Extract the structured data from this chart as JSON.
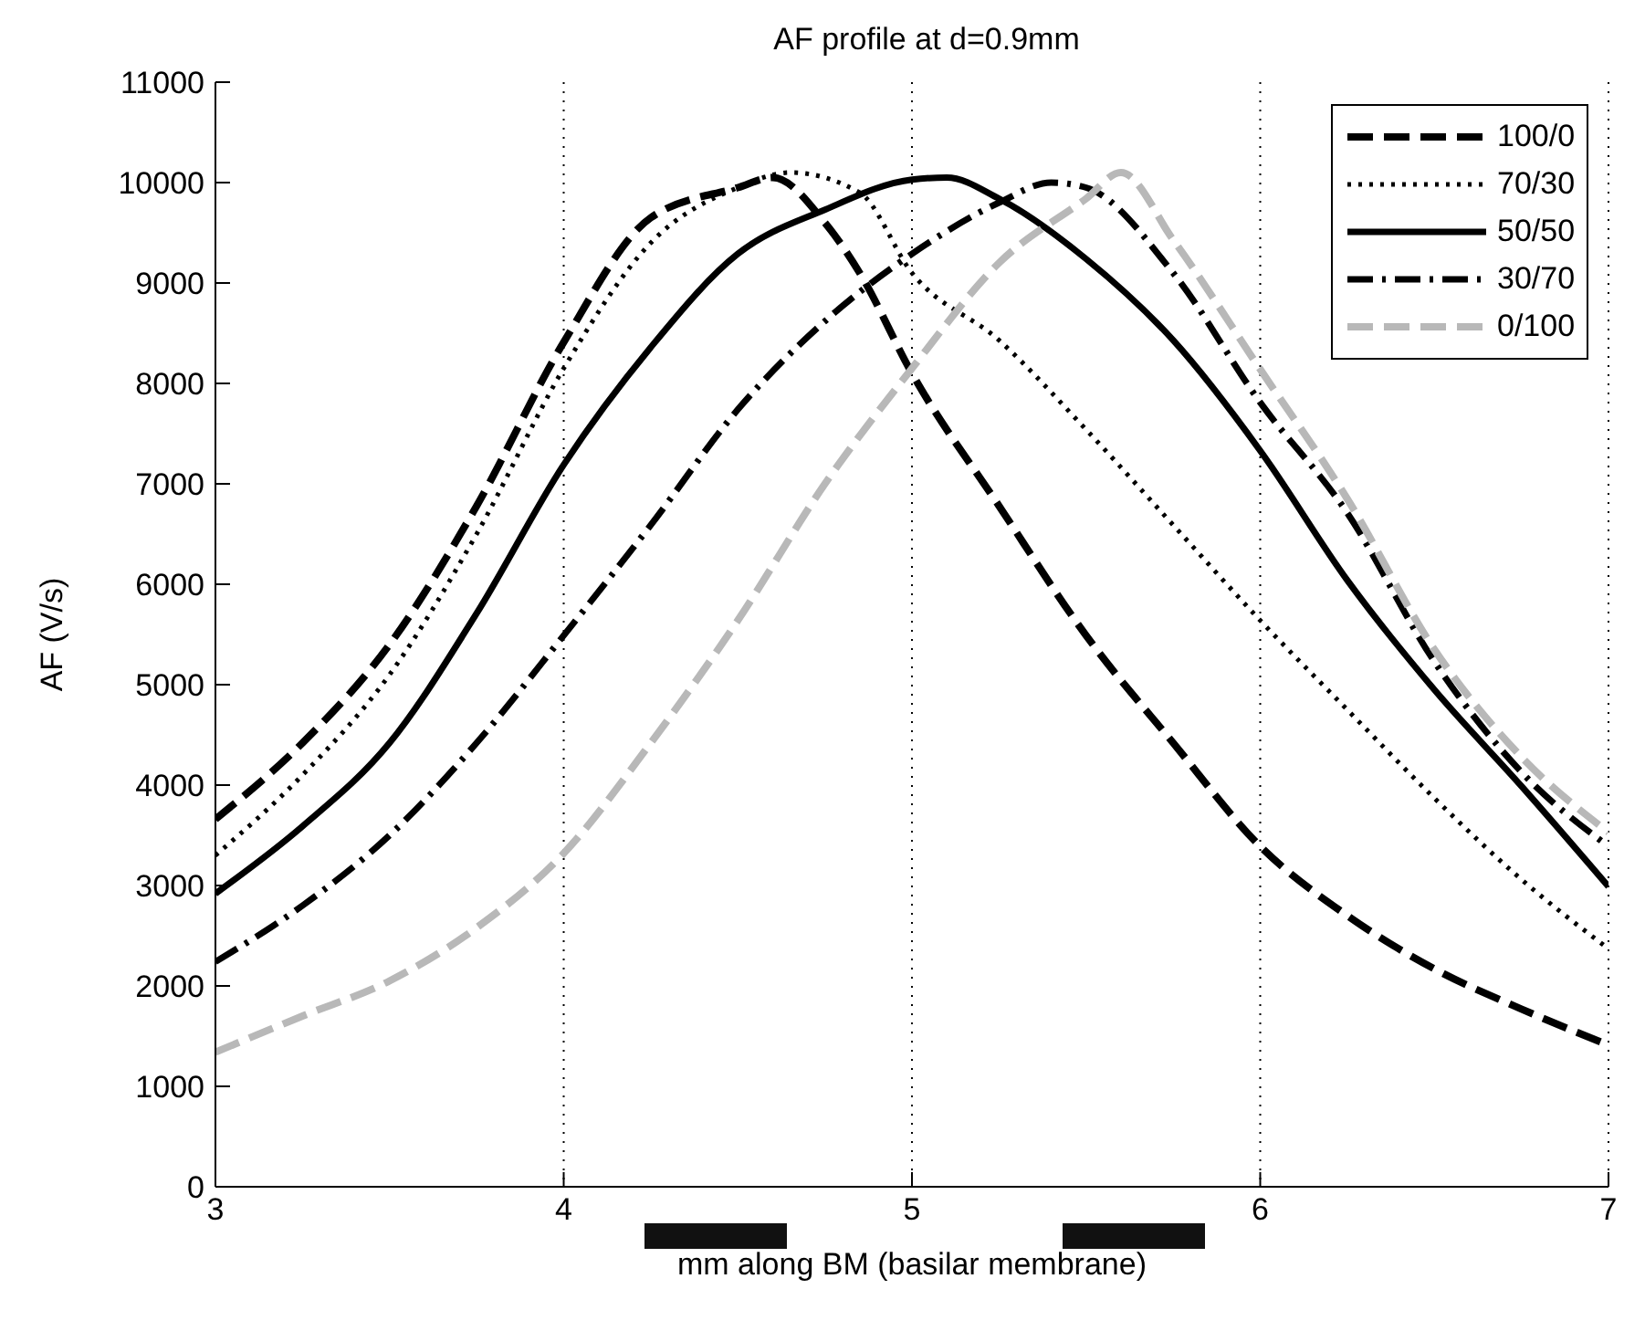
{
  "chart_data": {
    "type": "line",
    "title": "AF profile at d=0.9mm",
    "xlabel": "mm along BM (basilar membrane)",
    "ylabel": "AF (V/s)",
    "xlim": [
      3,
      7
    ],
    "xticks": [
      3,
      4,
      5,
      6,
      7
    ],
    "ylim": [
      0,
      11000
    ],
    "yticks": [
      0,
      1000,
      2000,
      3000,
      4000,
      5000,
      6000,
      7000,
      8000,
      9000,
      10000,
      11000
    ],
    "grid": "x",
    "legend": "top right",
    "marker": "none",
    "series": [
      {
        "name": "100/0",
        "color": "#000000",
        "line_style": "dashed",
        "x": [
          3,
          3.25,
          3.5,
          3.75,
          4,
          4.25,
          4.5,
          4.6,
          4.75,
          4.85,
          5,
          5.25,
          5.5,
          5.75,
          6,
          6.25,
          6.5,
          6.75,
          7
        ],
        "values": [
          3660,
          4420,
          5400,
          6780,
          8410,
          9650,
          9950,
          10050,
          9600,
          9100,
          8100,
          6780,
          5490,
          4420,
          3390,
          2700,
          2170,
          1770,
          1410
        ]
      },
      {
        "name": "70/30",
        "color": "#000000",
        "line_style": "dotted",
        "x": [
          3,
          3.25,
          3.5,
          3.75,
          4,
          4.25,
          4.5,
          4.65,
          4.85,
          5,
          5.25,
          5.5,
          5.75,
          6,
          6.25,
          6.5,
          6.75,
          7
        ],
        "values": [
          3300,
          4100,
          5100,
          6500,
          8150,
          9400,
          9950,
          10100,
          9900,
          9100,
          8430,
          7540,
          6590,
          5640,
          4750,
          3870,
          3060,
          2370
        ]
      },
      {
        "name": "50/50",
        "color": "#000000",
        "line_style": "solid",
        "x": [
          3,
          3.25,
          3.5,
          3.75,
          4,
          4.25,
          4.5,
          4.75,
          5,
          5.1,
          5.25,
          5.5,
          5.75,
          6,
          6.25,
          6.5,
          6.75,
          7
        ],
        "values": [
          2920,
          3590,
          4420,
          5710,
          7190,
          8360,
          9290,
          9730,
          10030,
          10050,
          9840,
          9240,
          8430,
          7330,
          6040,
          4950,
          3990,
          2990
        ]
      },
      {
        "name": "30/70",
        "color": "#000000",
        "line_style": "dashdot",
        "x": [
          3,
          3.25,
          3.5,
          3.75,
          4,
          4.25,
          4.5,
          4.75,
          5,
          5.25,
          5.4,
          5.5,
          5.75,
          6,
          6.25,
          6.5,
          6.75,
          7
        ],
        "values": [
          2240,
          2800,
          3500,
          4420,
          5490,
          6590,
          7740,
          8620,
          9290,
          9800,
          10000,
          9950,
          9100,
          7810,
          6710,
          5230,
          4130,
          3390
        ]
      },
      {
        "name": "0/100",
        "color": "#b8b8b8",
        "line_style": "dashed",
        "x": [
          3,
          3.25,
          3.5,
          3.75,
          4,
          4.25,
          4.5,
          4.75,
          5,
          5.25,
          5.5,
          5.6,
          5.75,
          6,
          6.25,
          6.5,
          6.75,
          7
        ],
        "values": [
          1340,
          1700,
          2050,
          2580,
          3320,
          4420,
          5640,
          7000,
          8150,
          9200,
          9840,
          10100,
          9430,
          8140,
          6850,
          5350,
          4280,
          3530
        ]
      }
    ]
  }
}
